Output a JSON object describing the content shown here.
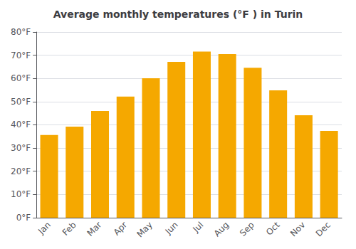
{
  "chart_data": {
    "type": "bar",
    "title": "Average monthly temperatures (°F ) in Turin",
    "categories": [
      "Jan",
      "Feb",
      "Mar",
      "Apr",
      "May",
      "Jun",
      "Jul",
      "Aug",
      "Sep",
      "Oct",
      "Nov",
      "Dec"
    ],
    "values": [
      35.6,
      39.2,
      46.0,
      52.2,
      60.1,
      67.1,
      71.6,
      70.5,
      64.6,
      54.9,
      44.1,
      37.4
    ],
    "color": "#F5A800",
    "ylim": [
      0,
      80
    ],
    "yticks": [
      {
        "value": 0,
        "label": "0°F"
      },
      {
        "value": 10,
        "label": "10°F"
      },
      {
        "value": 20,
        "label": "20°F"
      },
      {
        "value": 30,
        "label": "30°F"
      },
      {
        "value": 40,
        "label": "40°F"
      },
      {
        "value": 50,
        "label": "50°F"
      },
      {
        "value": 60,
        "label": "60°F"
      },
      {
        "value": 70,
        "label": "70°F"
      },
      {
        "value": 80,
        "label": "80°F"
      }
    ],
    "grid": true
  }
}
